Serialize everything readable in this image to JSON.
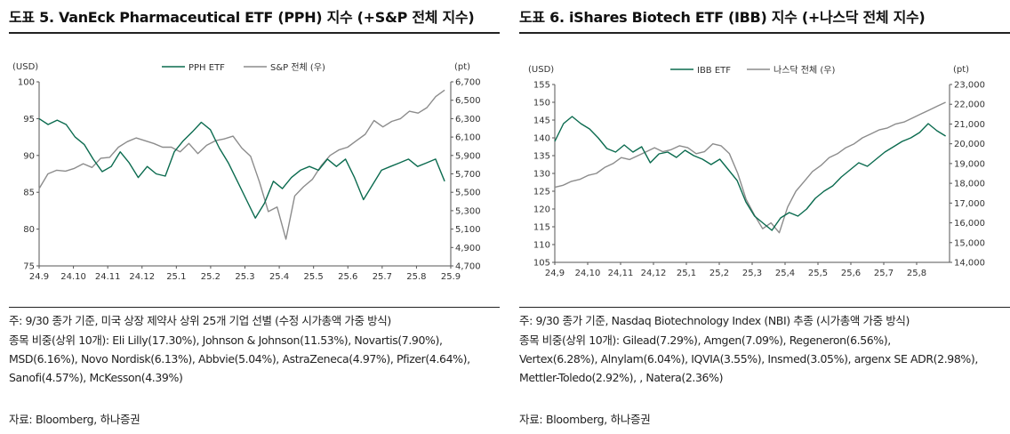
{
  "panels": [
    {
      "title": "도표 5. VanEck Pharmaceutical ETF (PPH) 지수 (+S&P 전체 지수)",
      "note": "주: 9/30 종가 기준, 미국 상장 제약사 상위 25개 기업 선별 (수정 시가총액 가중 방식)",
      "weights_lines": [
        "종목 비중(상위 10개): Eli Lilly(17.30%), Johnson & Johnson(11.53%), Novartis(7.90%),",
        "MSD(6.16%), Novo Nordisk(6.13%), Abbvie(5.04%), AstraZeneca(4.97%), Pfizer(4.64%),",
        "Sanofi(4.57%), McKesson(4.39%)"
      ],
      "source": "자료: Bloomberg, 하나증권"
    },
    {
      "title": "도표 6. iShares Biotech ETF (IBB) 지수 (+나스닥 전체 지수)",
      "note": "주: 9/30 종가 기준, Nasdaq Biotechnology Index (NBI) 추종 (시가총액 가중 방식)",
      "weights_lines": [
        "종목 비중(상위 10개): Gilead(7.29%), Amgen(7.09%), Regeneron(6.56%),",
        "Vertex(6.28%), Alnylam(6.04%), IQVIA(3.55%), Insmed(3.05%), argenx SE ADR(2.98%),",
        "Mettler-Toledo(2.92%), , Natera(2.36%)"
      ],
      "source": "자료: Bloomberg, 하나증권"
    }
  ],
  "colors": {
    "primary": "#0b6b4f",
    "secondary": "#8c8c8c"
  },
  "chart_data": [
    {
      "type": "line",
      "x_ticks": [
        "24.9",
        "24.10",
        "24.11",
        "24.12",
        "25.1",
        "25.2",
        "25.3",
        "25.4",
        "25.5",
        "25.6",
        "25.7",
        "25.8",
        "25.9"
      ],
      "y_left_unit": "(USD)",
      "y_right_unit": "(pt)",
      "y_left_ticks": [
        "75",
        "80",
        "85",
        "90",
        "95",
        "100"
      ],
      "y_right_ticks": [
        "4,700",
        "4,900",
        "5,100",
        "5,300",
        "5,500",
        "5,700",
        "5,900",
        "6,100",
        "6,300",
        "6,500",
        "6,700"
      ],
      "ylim_left": [
        75,
        100
      ],
      "ylim_right": [
        4700,
        6700
      ],
      "series": [
        {
          "name": "PPH ETF",
          "axis": "left",
          "values": [
            95.0,
            94.2,
            94.8,
            94.2,
            92.5,
            91.5,
            89.5,
            87.8,
            88.5,
            90.5,
            89.0,
            87.0,
            88.5,
            87.5,
            87.2,
            90.5,
            92.0,
            93.2,
            94.5,
            93.5,
            91.0,
            89.0,
            86.5,
            84.0,
            81.5,
            83.5,
            86.5,
            85.5,
            87.0,
            88.0,
            88.5,
            88.0,
            89.5,
            88.5,
            89.5,
            87.0,
            84.0,
            86.0,
            88.0,
            88.5,
            89.0,
            89.5,
            88.5,
            89.0,
            89.5,
            86.5
          ]
        },
        {
          "name": "S&P 전체 (우)",
          "axis": "right",
          "values": [
            5540,
            5700,
            5740,
            5730,
            5760,
            5810,
            5770,
            5870,
            5880,
            5990,
            6050,
            6090,
            6060,
            6030,
            5990,
            5990,
            5940,
            6030,
            5920,
            6010,
            6060,
            6080,
            6110,
            5980,
            5890,
            5610,
            5290,
            5340,
            4990,
            5460,
            5560,
            5640,
            5790,
            5900,
            5960,
            5990,
            6060,
            6130,
            6280,
            6210,
            6270,
            6300,
            6380,
            6360,
            6420,
            6540,
            6610
          ]
        }
      ]
    },
    {
      "type": "line",
      "x_ticks": [
        "24,9",
        "24,10",
        "24,11",
        "24,12",
        "25,1",
        "25,2",
        "25,3",
        "25,4",
        "25,5",
        "25,6",
        "25,7",
        "25,8"
      ],
      "y_left_unit": "(USD)",
      "y_right_unit": "(pt)",
      "y_left_ticks": [
        "105",
        "110",
        "115",
        "120",
        "125",
        "130",
        "135",
        "140",
        "145",
        "150",
        "155"
      ],
      "y_right_ticks": [
        "14,000",
        "15,000",
        "16,000",
        "17,000",
        "18,000",
        "19,000",
        "20,000",
        "21,000",
        "22,000",
        "23,000"
      ],
      "ylim_left": [
        105,
        155
      ],
      "ylim_right": [
        14000,
        23000
      ],
      "series": [
        {
          "name": "IBB ETF",
          "axis": "left",
          "values": [
            139.0,
            144.0,
            146.0,
            144.0,
            142.5,
            140.0,
            137.0,
            136.0,
            138.0,
            136.0,
            137.5,
            133.0,
            135.5,
            136.0,
            134.5,
            136.5,
            135.0,
            134.0,
            132.5,
            134.0,
            131.0,
            128.0,
            122.0,
            118.0,
            116.0,
            114.0,
            117.5,
            119.0,
            118.0,
            120.0,
            123.0,
            125.0,
            126.5,
            129.0,
            131.0,
            133.0,
            132.0,
            134.0,
            136.0,
            137.5,
            139.0,
            140.0,
            141.5,
            144.0,
            142.0,
            140.5
          ]
        },
        {
          "name": "나스닥 전체 (우)",
          "axis": "right",
          "values": [
            17800,
            17900,
            18100,
            18200,
            18400,
            18500,
            18800,
            19000,
            19300,
            19200,
            19400,
            19600,
            19800,
            19600,
            19700,
            19900,
            19800,
            19500,
            19600,
            20000,
            19900,
            19500,
            18500,
            17200,
            16400,
            15700,
            16000,
            15500,
            16800,
            17600,
            18100,
            18600,
            18900,
            19300,
            19500,
            19800,
            20000,
            20300,
            20500,
            20700,
            20800,
            21000,
            21100,
            21300,
            21500,
            21700,
            21900,
            22100
          ]
        }
      ]
    }
  ]
}
